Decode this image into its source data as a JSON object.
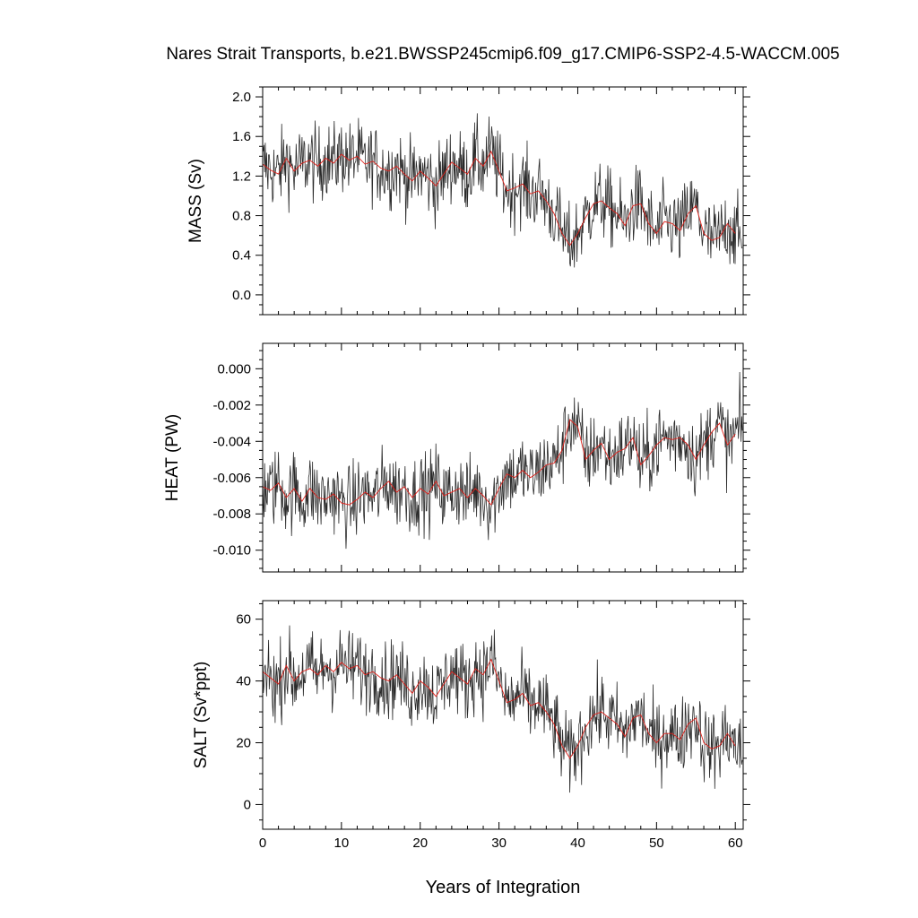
{
  "title": "Nares Strait Transports, b.e21.BWSSP245cmip6.f09_g17.CMIP6-SSP2-4.5-WACCM.005",
  "xlabel": "Years of Integration",
  "colors": {
    "raw": "#2a2a2a",
    "smooth": "#e0201a"
  },
  "chart_data": [
    {
      "type": "line",
      "ylabel": "MASS (Sv)",
      "xlim": [
        0,
        61
      ],
      "ylim": [
        -0.2,
        2.1
      ],
      "xticks": [
        0,
        10,
        20,
        30,
        40,
        50,
        60
      ],
      "yticks": [
        0.0,
        0.4,
        0.8,
        1.2,
        1.6,
        2.0
      ],
      "ytick_labels": [
        "0.0",
        "0.4",
        "0.8",
        "1.2",
        "1.6",
        "2.0"
      ],
      "series_raw": {
        "x_start": 0,
        "dx": 0.0833,
        "values": []
      },
      "series_smooth": {
        "x": [
          0,
          1,
          2,
          3,
          4,
          5,
          6,
          7,
          8,
          9,
          10,
          11,
          12,
          13,
          14,
          15,
          16,
          17,
          18,
          19,
          20,
          21,
          22,
          23,
          24,
          25,
          26,
          27,
          28,
          29,
          30,
          31,
          32,
          33,
          34,
          35,
          36,
          37,
          38,
          39,
          40,
          41,
          42,
          43,
          44,
          45,
          46,
          47,
          48,
          49,
          50,
          51,
          52,
          53,
          54,
          55,
          56,
          57,
          58,
          59,
          60
        ],
        "values": [
          1.32,
          1.26,
          1.22,
          1.38,
          1.25,
          1.33,
          1.36,
          1.3,
          1.38,
          1.33,
          1.42,
          1.36,
          1.4,
          1.32,
          1.35,
          1.28,
          1.25,
          1.3,
          1.22,
          1.15,
          1.25,
          1.18,
          1.1,
          1.22,
          1.34,
          1.28,
          1.22,
          1.38,
          1.3,
          1.45,
          1.25,
          1.05,
          1.08,
          1.12,
          1.02,
          1.05,
          0.95,
          0.82,
          0.62,
          0.5,
          0.62,
          0.78,
          0.92,
          0.95,
          0.88,
          0.82,
          0.7,
          0.9,
          0.92,
          0.72,
          0.62,
          0.74,
          0.72,
          0.65,
          0.82,
          0.9,
          0.62,
          0.55,
          0.58,
          0.72,
          0.62
        ]
      }
    },
    {
      "type": "line",
      "ylabel": "HEAT (PW)",
      "xlim": [
        0,
        61
      ],
      "ylim": [
        -0.0112,
        0.0014
      ],
      "xticks": [
        0,
        10,
        20,
        30,
        40,
        50,
        60
      ],
      "yticks": [
        -0.01,
        -0.008,
        -0.006,
        -0.004,
        -0.002,
        0.0
      ],
      "ytick_labels": [
        "-0.010",
        "-0.008",
        "-0.006",
        "-0.004",
        "-0.002",
        "0.000"
      ],
      "series_raw": {
        "x_start": 0,
        "dx": 0.0833,
        "values": []
      },
      "series_smooth": {
        "x": [
          0,
          1,
          2,
          3,
          4,
          5,
          6,
          7,
          8,
          9,
          10,
          11,
          12,
          13,
          14,
          15,
          16,
          17,
          18,
          19,
          20,
          21,
          22,
          23,
          24,
          25,
          26,
          27,
          28,
          29,
          30,
          31,
          32,
          33,
          34,
          35,
          36,
          37,
          38,
          39,
          40,
          41,
          42,
          43,
          44,
          45,
          46,
          47,
          48,
          49,
          50,
          51,
          52,
          53,
          54,
          55,
          56,
          57,
          58,
          59,
          60
        ],
        "values": [
          -0.0065,
          -0.0067,
          -0.0063,
          -0.0071,
          -0.0066,
          -0.0073,
          -0.0066,
          -0.0071,
          -0.0072,
          -0.0069,
          -0.0074,
          -0.0075,
          -0.0072,
          -0.0068,
          -0.0071,
          -0.0066,
          -0.0062,
          -0.0068,
          -0.0065,
          -0.0071,
          -0.0066,
          -0.0069,
          -0.0062,
          -0.007,
          -0.0068,
          -0.0066,
          -0.0071,
          -0.0066,
          -0.007,
          -0.0075,
          -0.0066,
          -0.0058,
          -0.006,
          -0.0056,
          -0.006,
          -0.0057,
          -0.0053,
          -0.0052,
          -0.0045,
          -0.0028,
          -0.0032,
          -0.005,
          -0.0045,
          -0.0041,
          -0.005,
          -0.0046,
          -0.0044,
          -0.0038,
          -0.0053,
          -0.0048,
          -0.0042,
          -0.0038,
          -0.0039,
          -0.0038,
          -0.0042,
          -0.005,
          -0.0042,
          -0.0035,
          -0.003,
          -0.0042,
          -0.0036
        ]
      }
    },
    {
      "type": "line",
      "ylabel": "SALT (Sv*ppt)",
      "xlim": [
        0,
        61
      ],
      "ylim": [
        -8,
        66
      ],
      "xticks": [
        0,
        10,
        20,
        30,
        40,
        50,
        60
      ],
      "yticks": [
        0,
        20,
        40,
        60
      ],
      "ytick_labels": [
        "0",
        "20",
        "40",
        "60"
      ],
      "series_raw": {
        "x_start": 0,
        "dx": 0.0833,
        "values": []
      },
      "series_smooth": {
        "x": [
          0,
          1,
          2,
          3,
          4,
          5,
          6,
          7,
          8,
          9,
          10,
          11,
          12,
          13,
          14,
          15,
          16,
          17,
          18,
          19,
          20,
          21,
          22,
          23,
          24,
          25,
          26,
          27,
          28,
          29,
          30,
          31,
          32,
          33,
          34,
          35,
          36,
          37,
          38,
          39,
          40,
          41,
          42,
          43,
          44,
          45,
          46,
          47,
          48,
          49,
          50,
          51,
          52,
          53,
          54,
          55,
          56,
          57,
          58,
          59,
          60
        ],
        "values": [
          43,
          41,
          39,
          45,
          40,
          43,
          44,
          42,
          45,
          43,
          46,
          44,
          45,
          42,
          43,
          41,
          40,
          42,
          39,
          36,
          40,
          38,
          35,
          39,
          43,
          41,
          39,
          44,
          42,
          47,
          40,
          33,
          34,
          36,
          32,
          33,
          30,
          26,
          19,
          15,
          19,
          25,
          29,
          30,
          28,
          26,
          22,
          28,
          29,
          23,
          20,
          23,
          23,
          21,
          26,
          28,
          20,
          18,
          19,
          23,
          19
        ]
      }
    }
  ]
}
